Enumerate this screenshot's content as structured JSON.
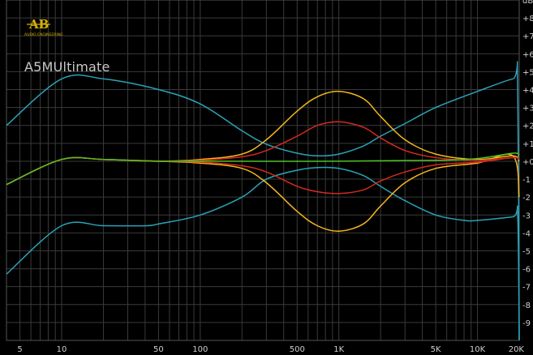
{
  "branding": {
    "logo_letters": "AB",
    "logo_subtitle": "AUDIO ENGINEERING",
    "plugin_name": "A5MUltimate"
  },
  "colors": {
    "background": "#000000",
    "grid": "#3a3a3a",
    "axis_text": "#cfcfcf",
    "logo": "#d4b106"
  },
  "chart_data": {
    "type": "line",
    "xscale": "log",
    "xlim": [
      4,
      20000
    ],
    "ylim": [
      -10,
      9
    ],
    "ylabel": "dB",
    "x_ticks": [
      {
        "value": 5,
        "label": "5"
      },
      {
        "value": 10,
        "label": "10"
      },
      {
        "value": 50,
        "label": "50"
      },
      {
        "value": 100,
        "label": "100"
      },
      {
        "value": 500,
        "label": "500"
      },
      {
        "value": 1000,
        "label": "1K"
      },
      {
        "value": 5000,
        "label": "5K"
      },
      {
        "value": 10000,
        "label": "10K"
      },
      {
        "value": 20000,
        "label": "20K"
      }
    ],
    "y_ticks": [
      {
        "value": 9,
        "label": "dB"
      },
      {
        "value": 8,
        "label": "+8"
      },
      {
        "value": 7,
        "label": "+7"
      },
      {
        "value": 6,
        "label": "+6"
      },
      {
        "value": 5,
        "label": "+5"
      },
      {
        "value": 4,
        "label": "+4"
      },
      {
        "value": 3,
        "label": "+3"
      },
      {
        "value": 2,
        "label": "+2"
      },
      {
        "value": 1,
        "label": "+1"
      },
      {
        "value": 0,
        "label": "+0"
      },
      {
        "value": -1,
        "label": "-1"
      },
      {
        "value": -2,
        "label": "-2"
      },
      {
        "value": -3,
        "label": "-3"
      },
      {
        "value": -4,
        "label": "-4"
      },
      {
        "value": -5,
        "label": "-5"
      },
      {
        "value": -6,
        "label": "-6"
      },
      {
        "value": -7,
        "label": "-7"
      },
      {
        "value": -8,
        "label": "-8"
      },
      {
        "value": -9,
        "label": "-9"
      }
    ],
    "grid": true,
    "series": [
      {
        "color": "#2aa3b8",
        "x": [
          4,
          10,
          20,
          50,
          100,
          200,
          300,
          500,
          700,
          1000,
          1500,
          2000,
          3000,
          5000,
          10000,
          18000,
          19500,
          20000
        ],
        "y": [
          2.0,
          4.6,
          4.6,
          4.0,
          3.2,
          1.7,
          0.95,
          0.45,
          0.3,
          0.4,
          0.85,
          1.4,
          2.1,
          3.0,
          3.9,
          4.6,
          4.4,
          -10
        ]
      },
      {
        "color": "#2aa3b8",
        "x": [
          4,
          10,
          20,
          40,
          50,
          100,
          200,
          300,
          500,
          700,
          1000,
          1500,
          2000,
          3000,
          5000,
          8000,
          10000,
          18000,
          19500,
          20000
        ],
        "y": [
          -6.3,
          -3.6,
          -3.6,
          -3.6,
          -3.5,
          -3.0,
          -2.0,
          -1.0,
          -0.5,
          -0.35,
          -0.4,
          -0.8,
          -1.4,
          -2.2,
          -3.0,
          -3.3,
          -3.3,
          -3.1,
          -3.0,
          -10
        ]
      },
      {
        "color": "#f5b71e",
        "x": [
          4,
          10,
          20,
          50,
          100,
          200,
          300,
          500,
          700,
          1000,
          1500,
          2000,
          3000,
          5000,
          10000,
          18000,
          20000
        ],
        "y": [
          -1.3,
          0.1,
          0.1,
          0.0,
          0.1,
          0.4,
          1.2,
          2.8,
          3.6,
          3.9,
          3.5,
          2.5,
          1.2,
          0.4,
          0.1,
          0.3,
          0.0
        ]
      },
      {
        "color": "#f5b71e",
        "x": [
          4,
          10,
          20,
          50,
          100,
          200,
          300,
          500,
          700,
          1000,
          1500,
          2000,
          3000,
          5000,
          10000,
          18000,
          20000
        ],
        "y": [
          -1.3,
          0.1,
          0.1,
          0.0,
          -0.1,
          -0.4,
          -1.2,
          -2.8,
          -3.6,
          -3.9,
          -3.5,
          -2.5,
          -1.2,
          -0.4,
          -0.1,
          0.3,
          -2.0
        ]
      },
      {
        "color": "#d42a1b",
        "x": [
          4,
          10,
          20,
          50,
          100,
          200,
          300,
          500,
          700,
          1000,
          1500,
          2000,
          3000,
          5000,
          10000,
          18000,
          20000
        ],
        "y": [
          -1.3,
          0.1,
          0.1,
          0.0,
          0.05,
          0.25,
          0.6,
          1.4,
          2.0,
          2.2,
          1.9,
          1.3,
          0.6,
          0.2,
          0.05,
          0.2,
          0.1
        ]
      },
      {
        "color": "#d42a1b",
        "x": [
          4,
          10,
          20,
          50,
          100,
          200,
          300,
          500,
          700,
          1000,
          1500,
          2000,
          3000,
          5000,
          10000,
          18000,
          20000
        ],
        "y": [
          -1.3,
          0.1,
          0.1,
          0.0,
          -0.05,
          -0.25,
          -0.6,
          -1.4,
          -1.7,
          -1.8,
          -1.6,
          -1.1,
          -0.6,
          -0.2,
          -0.05,
          0.2,
          0.1
        ]
      },
      {
        "color": "#4ec326",
        "x": [
          4,
          10,
          20,
          50,
          100,
          1000,
          5000,
          10000,
          18000,
          20000
        ],
        "y": [
          -1.3,
          0.1,
          0.1,
          0.0,
          0.0,
          0.0,
          0.05,
          0.15,
          0.45,
          0.35
        ]
      }
    ]
  }
}
